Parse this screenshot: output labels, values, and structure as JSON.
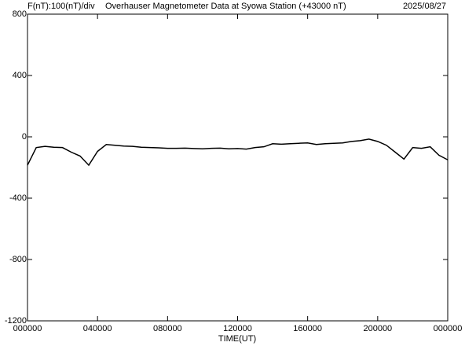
{
  "chart_data": {
    "type": "line",
    "header_left": "F(nT):100(nT)/div",
    "title": "Overhauser Magnetometer Data at Syowa Station (+43000 nT)",
    "date": "2025/08/27",
    "x_label": "TIME(UT)",
    "x": [
      0,
      0.5,
      1,
      1.5,
      2,
      2.5,
      3,
      3.5,
      4,
      4.5,
      5,
      5.5,
      6,
      6.5,
      7,
      7.5,
      8,
      8.5,
      9,
      9.5,
      10,
      10.5,
      11,
      11.5,
      12,
      12.5,
      13,
      13.5,
      14,
      14.5,
      15,
      15.5,
      16,
      16.5,
      17,
      17.5,
      18,
      18.5,
      19,
      19.5,
      20,
      20.5,
      21,
      21.5,
      22,
      22.5,
      23,
      23.5,
      24
    ],
    "series": [
      {
        "name": "F",
        "color": "#000000",
        "values": [
          -185,
          -70,
          -62,
          -68,
          -70,
          -100,
          -125,
          -185,
          -95,
          -50,
          -55,
          -60,
          -62,
          -68,
          -70,
          -72,
          -75,
          -75,
          -74,
          -76,
          -78,
          -75,
          -74,
          -78,
          -76,
          -80,
          -70,
          -65,
          -45,
          -48,
          -45,
          -42,
          -40,
          -50,
          -45,
          -42,
          -40,
          -30,
          -25,
          -15,
          -30,
          -55,
          -100,
          -145,
          -70,
          -75,
          -65,
          -120,
          -150
        ]
      }
    ],
    "xlim": [
      0,
      24
    ],
    "xticks": [
      {
        "value": 0,
        "label": "000000"
      },
      {
        "value": 4,
        "label": "040000"
      },
      {
        "value": 8,
        "label": "080000"
      },
      {
        "value": 12,
        "label": "120000"
      },
      {
        "value": 16,
        "label": "160000"
      },
      {
        "value": 20,
        "label": "200000"
      },
      {
        "value": 24,
        "label": "000000"
      }
    ],
    "ylim": [
      -1200,
      800
    ],
    "yticks": [
      -1200,
      -800,
      -400,
      0,
      400,
      800
    ]
  }
}
